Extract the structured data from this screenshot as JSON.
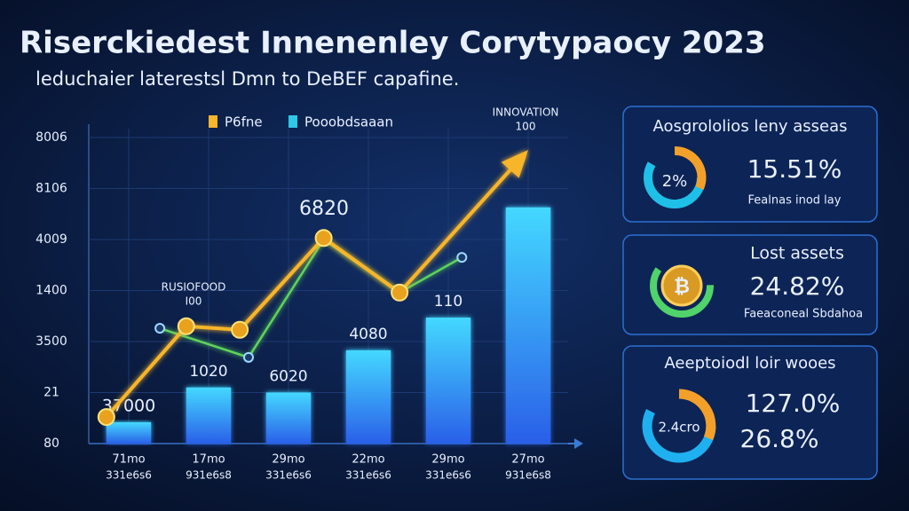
{
  "title": "Riserckiedest Innenenley Corytypaocy 2023",
  "subtitle": "leduchaier laterestsl Dmn to DeBEF capafine.",
  "chart_data": {
    "type": "bar",
    "categories": [
      "71mo",
      "17mo",
      "29mo",
      "22mo",
      "29mo",
      "27mo"
    ],
    "category_sublabels": [
      "331e6s6",
      "931e6s8",
      "331e6s6",
      "331e6s6",
      "331e6s6",
      "931e6s8"
    ],
    "values": [
      0.42,
      1.1,
      1.0,
      1.83,
      2.47,
      4.63
    ],
    "bar_labels": [
      "37000",
      "1020",
      "6020",
      "4080",
      "110",
      null
    ],
    "bar_colors": [
      "#44d8ff",
      "#2a5fe8"
    ],
    "series": [
      {
        "name": "P6fne",
        "color": "#f7b52a",
        "x": [
          0.22,
          1.22,
          1.89,
          2.94,
          3.89,
          5.44
        ],
        "values": [
          0.52,
          2.3,
          2.23,
          4.03,
          2.96,
          5.65
        ]
      },
      {
        "name": "Pooobdsaaan",
        "color": "#5fd35a",
        "x": [
          0.89,
          2.0,
          2.94,
          3.89,
          4.67
        ],
        "values": [
          2.26,
          1.69,
          4.0,
          2.96,
          3.65
        ]
      }
    ],
    "xlim": [
      0,
      6
    ],
    "ylim": [
      0,
      6
    ],
    "yticks": [
      0,
      1,
      2,
      3,
      4,
      5,
      6
    ],
    "ytick_labels": [
      "80",
      "21",
      "3500",
      "1400",
      "4009",
      "8106",
      "8006"
    ],
    "grid": true,
    "annotations": [
      "6820",
      "RUSIOFOOD",
      "I00",
      "INNOVATION",
      "100"
    ]
  },
  "cards": [
    {
      "title": "Aosgrololios leny asseas",
      "gauge_label": "2%",
      "value": "15.51%",
      "note": "Fealnas inod lay"
    },
    {
      "title": "Lost assets",
      "gauge_label": "₿",
      "value": "24.82%",
      "note": "Faeaconeal Sbdahoa"
    },
    {
      "title": "Aeeptoiodl loir wooes",
      "gauge_label": "2.4cro",
      "value": "127.0%",
      "value2": "26.8%"
    }
  ]
}
